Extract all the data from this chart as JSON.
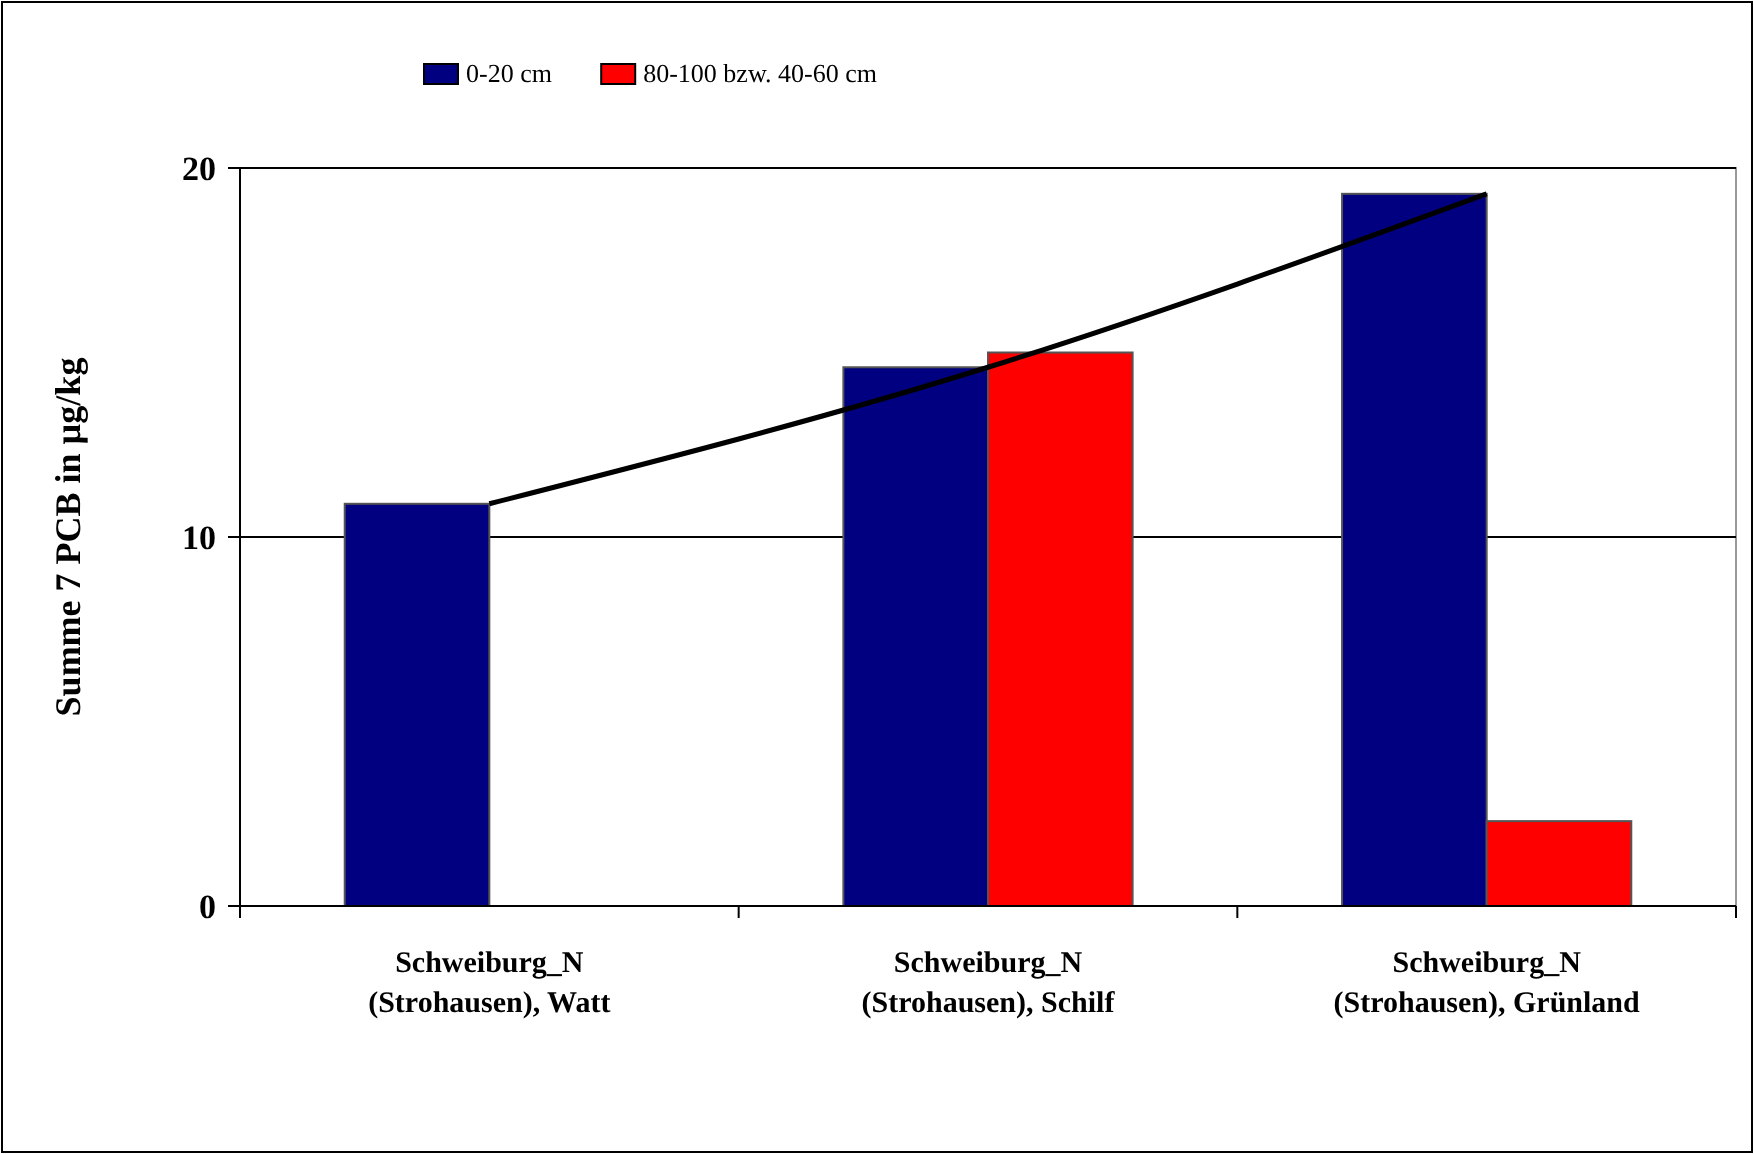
{
  "chart_data": {
    "type": "bar",
    "ylabel": "Summe 7 PCB in µg/kg",
    "categories": [
      "Schweiburg_N\n(Strohausen), Watt",
      "Schweiburg_N\n(Strohausen), Schilf",
      "Schweiburg_N\n(Strohausen), Grünland"
    ],
    "series": [
      {
        "name": "0-20 cm",
        "color": "#000080",
        "values": [
          10.9,
          14.6,
          19.3
        ]
      },
      {
        "name": "80-100 bzw. 40-60 cm",
        "color": "#ff0000",
        "values": [
          null,
          15.0,
          2.3
        ]
      },
      {
        "type": "line",
        "color": "#000000",
        "values": [
          10.9,
          14.6,
          19.3
        ]
      }
    ],
    "ylim": [
      0,
      20
    ],
    "yticks": [
      0,
      10,
      20
    ],
    "grid": "y",
    "legend": "top"
  }
}
